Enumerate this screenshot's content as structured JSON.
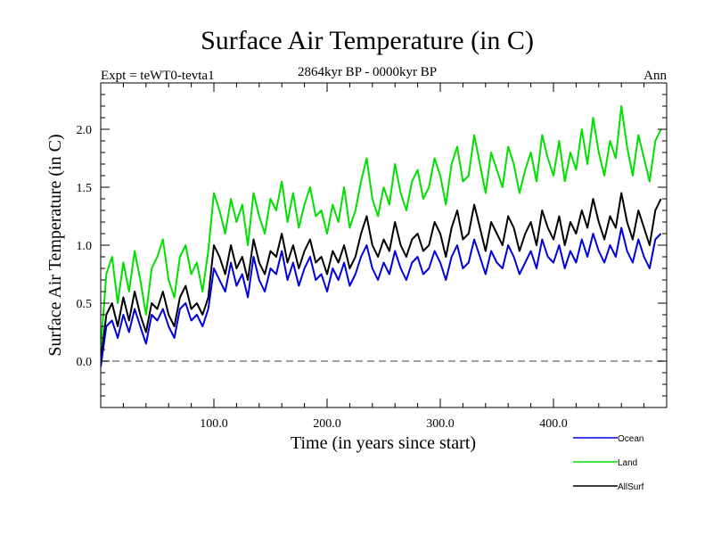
{
  "chart_data": {
    "type": "line",
    "title": "Surface Air Temperature (in C)",
    "subtitle": "2864kyr BP - 0000kyr BP",
    "left_label": "Expt = teWT0-tevta1",
    "right_label": "Ann",
    "xlabel": "Time (in years since start)",
    "ylabel": "Surface Air Temperature (in C)",
    "xlim": [
      0,
      500
    ],
    "ylim": [
      -0.4,
      2.4
    ],
    "xticks": [
      100,
      200,
      300,
      400
    ],
    "xtick_labels": [
      "100.0",
      "200.0",
      "300.0",
      "400.0"
    ],
    "x_minor_step": 20,
    "yticks": [
      0.0,
      0.5,
      1.0,
      1.5,
      2.0
    ],
    "ytick_labels": [
      "0.0",
      "0.5",
      "1.0",
      "1.5",
      "2.0"
    ],
    "y_minor_step": 0.1,
    "reference_line": {
      "y": 0.0,
      "style": "dashed",
      "color": "#808080"
    },
    "grid": false,
    "legend": {
      "placement": "bottom-right",
      "entries": [
        "Ocean",
        "Land",
        "AllSurf"
      ]
    },
    "x_step": 5,
    "series": [
      {
        "name": "Ocean",
        "color": "#0000dd",
        "values": [
          -0.05,
          0.3,
          0.35,
          0.2,
          0.4,
          0.25,
          0.45,
          0.3,
          0.15,
          0.4,
          0.35,
          0.45,
          0.3,
          0.2,
          0.45,
          0.5,
          0.35,
          0.4,
          0.3,
          0.45,
          0.8,
          0.7,
          0.6,
          0.85,
          0.65,
          0.75,
          0.55,
          0.9,
          0.7,
          0.6,
          0.8,
          0.75,
          0.95,
          0.7,
          0.85,
          0.65,
          0.8,
          0.9,
          0.7,
          0.75,
          0.6,
          0.8,
          0.7,
          0.85,
          0.65,
          0.75,
          0.9,
          1.0,
          0.8,
          0.7,
          0.85,
          0.75,
          0.95,
          0.8,
          0.7,
          0.85,
          0.9,
          0.75,
          0.8,
          0.95,
          0.85,
          0.7,
          0.9,
          1.0,
          0.8,
          0.85,
          1.05,
          0.9,
          0.75,
          0.95,
          0.85,
          0.8,
          1.0,
          0.9,
          0.75,
          0.85,
          0.95,
          0.8,
          1.05,
          0.9,
          0.85,
          1.0,
          0.8,
          0.95,
          0.85,
          1.05,
          0.9,
          1.1,
          0.95,
          0.85,
          1.0,
          0.9,
          1.15,
          0.95,
          0.85,
          1.05,
          0.9,
          0.8,
          1.05,
          1.1
        ]
      },
      {
        "name": "Land",
        "color": "#00e000",
        "values": [
          0.1,
          0.75,
          0.9,
          0.5,
          0.85,
          0.6,
          0.95,
          0.7,
          0.4,
          0.8,
          0.9,
          1.05,
          0.7,
          0.55,
          0.9,
          1.0,
          0.75,
          0.85,
          0.6,
          0.95,
          1.45,
          1.3,
          1.1,
          1.4,
          1.2,
          1.35,
          1.0,
          1.45,
          1.25,
          1.1,
          1.4,
          1.3,
          1.55,
          1.2,
          1.45,
          1.15,
          1.35,
          1.5,
          1.25,
          1.3,
          1.1,
          1.35,
          1.2,
          1.5,
          1.15,
          1.3,
          1.55,
          1.75,
          1.4,
          1.25,
          1.5,
          1.35,
          1.7,
          1.45,
          1.3,
          1.55,
          1.65,
          1.4,
          1.5,
          1.75,
          1.6,
          1.35,
          1.7,
          1.85,
          1.55,
          1.6,
          1.95,
          1.7,
          1.45,
          1.8,
          1.65,
          1.5,
          1.85,
          1.7,
          1.45,
          1.65,
          1.8,
          1.55,
          1.95,
          1.75,
          1.6,
          1.9,
          1.55,
          1.8,
          1.65,
          2.0,
          1.7,
          2.1,
          1.8,
          1.6,
          1.9,
          1.75,
          2.2,
          1.85,
          1.6,
          1.95,
          1.75,
          1.55,
          1.9,
          2.0
        ]
      },
      {
        "name": "AllSurf",
        "color": "#000000",
        "values": [
          0.0,
          0.4,
          0.5,
          0.3,
          0.55,
          0.35,
          0.6,
          0.4,
          0.25,
          0.5,
          0.45,
          0.6,
          0.4,
          0.3,
          0.55,
          0.65,
          0.45,
          0.5,
          0.4,
          0.55,
          1.0,
          0.9,
          0.75,
          1.0,
          0.8,
          0.9,
          0.7,
          1.05,
          0.85,
          0.75,
          0.95,
          0.9,
          1.1,
          0.85,
          1.0,
          0.8,
          0.95,
          1.05,
          0.85,
          0.9,
          0.75,
          0.95,
          0.85,
          1.0,
          0.8,
          0.9,
          1.1,
          1.25,
          1.0,
          0.9,
          1.05,
          0.95,
          1.2,
          1.0,
          0.9,
          1.05,
          1.1,
          0.95,
          1.0,
          1.2,
          1.1,
          0.9,
          1.15,
          1.3,
          1.05,
          1.1,
          1.35,
          1.15,
          0.95,
          1.2,
          1.1,
          1.0,
          1.25,
          1.15,
          0.95,
          1.1,
          1.2,
          1.0,
          1.3,
          1.15,
          1.05,
          1.25,
          1.0,
          1.2,
          1.1,
          1.3,
          1.15,
          1.4,
          1.2,
          1.05,
          1.25,
          1.15,
          1.45,
          1.2,
          1.05,
          1.3,
          1.15,
          1.0,
          1.3,
          1.4
        ]
      }
    ]
  }
}
